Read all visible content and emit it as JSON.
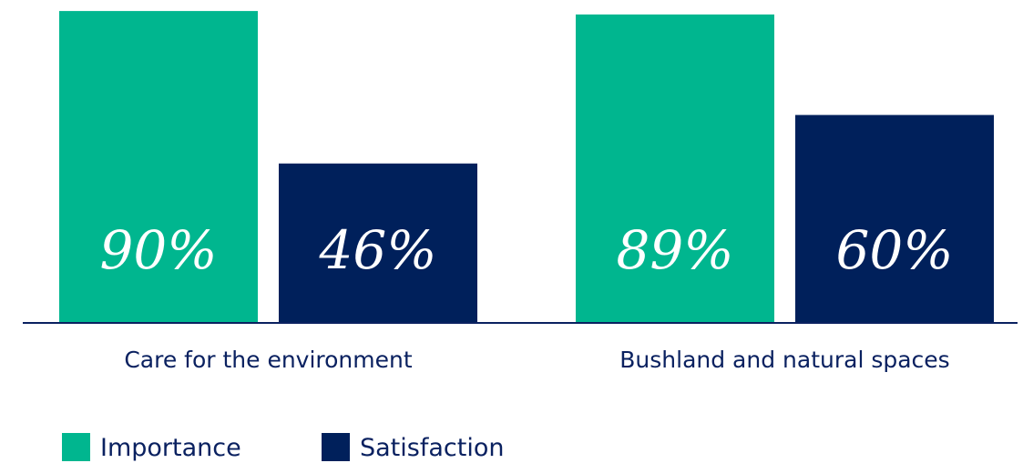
{
  "chart_data": {
    "type": "bar",
    "categories": [
      "Care for the environment",
      "Bushland and natural spaces"
    ],
    "series": [
      {
        "name": "Importance",
        "color": "#00b68f",
        "values": [
          90,
          89
        ],
        "value_labels": [
          "90%",
          "89%"
        ]
      },
      {
        "name": "Satisfaction",
        "color": "#00205b",
        "values": [
          46,
          60
        ],
        "value_labels": [
          "46%",
          "60%"
        ]
      }
    ]
  }
}
